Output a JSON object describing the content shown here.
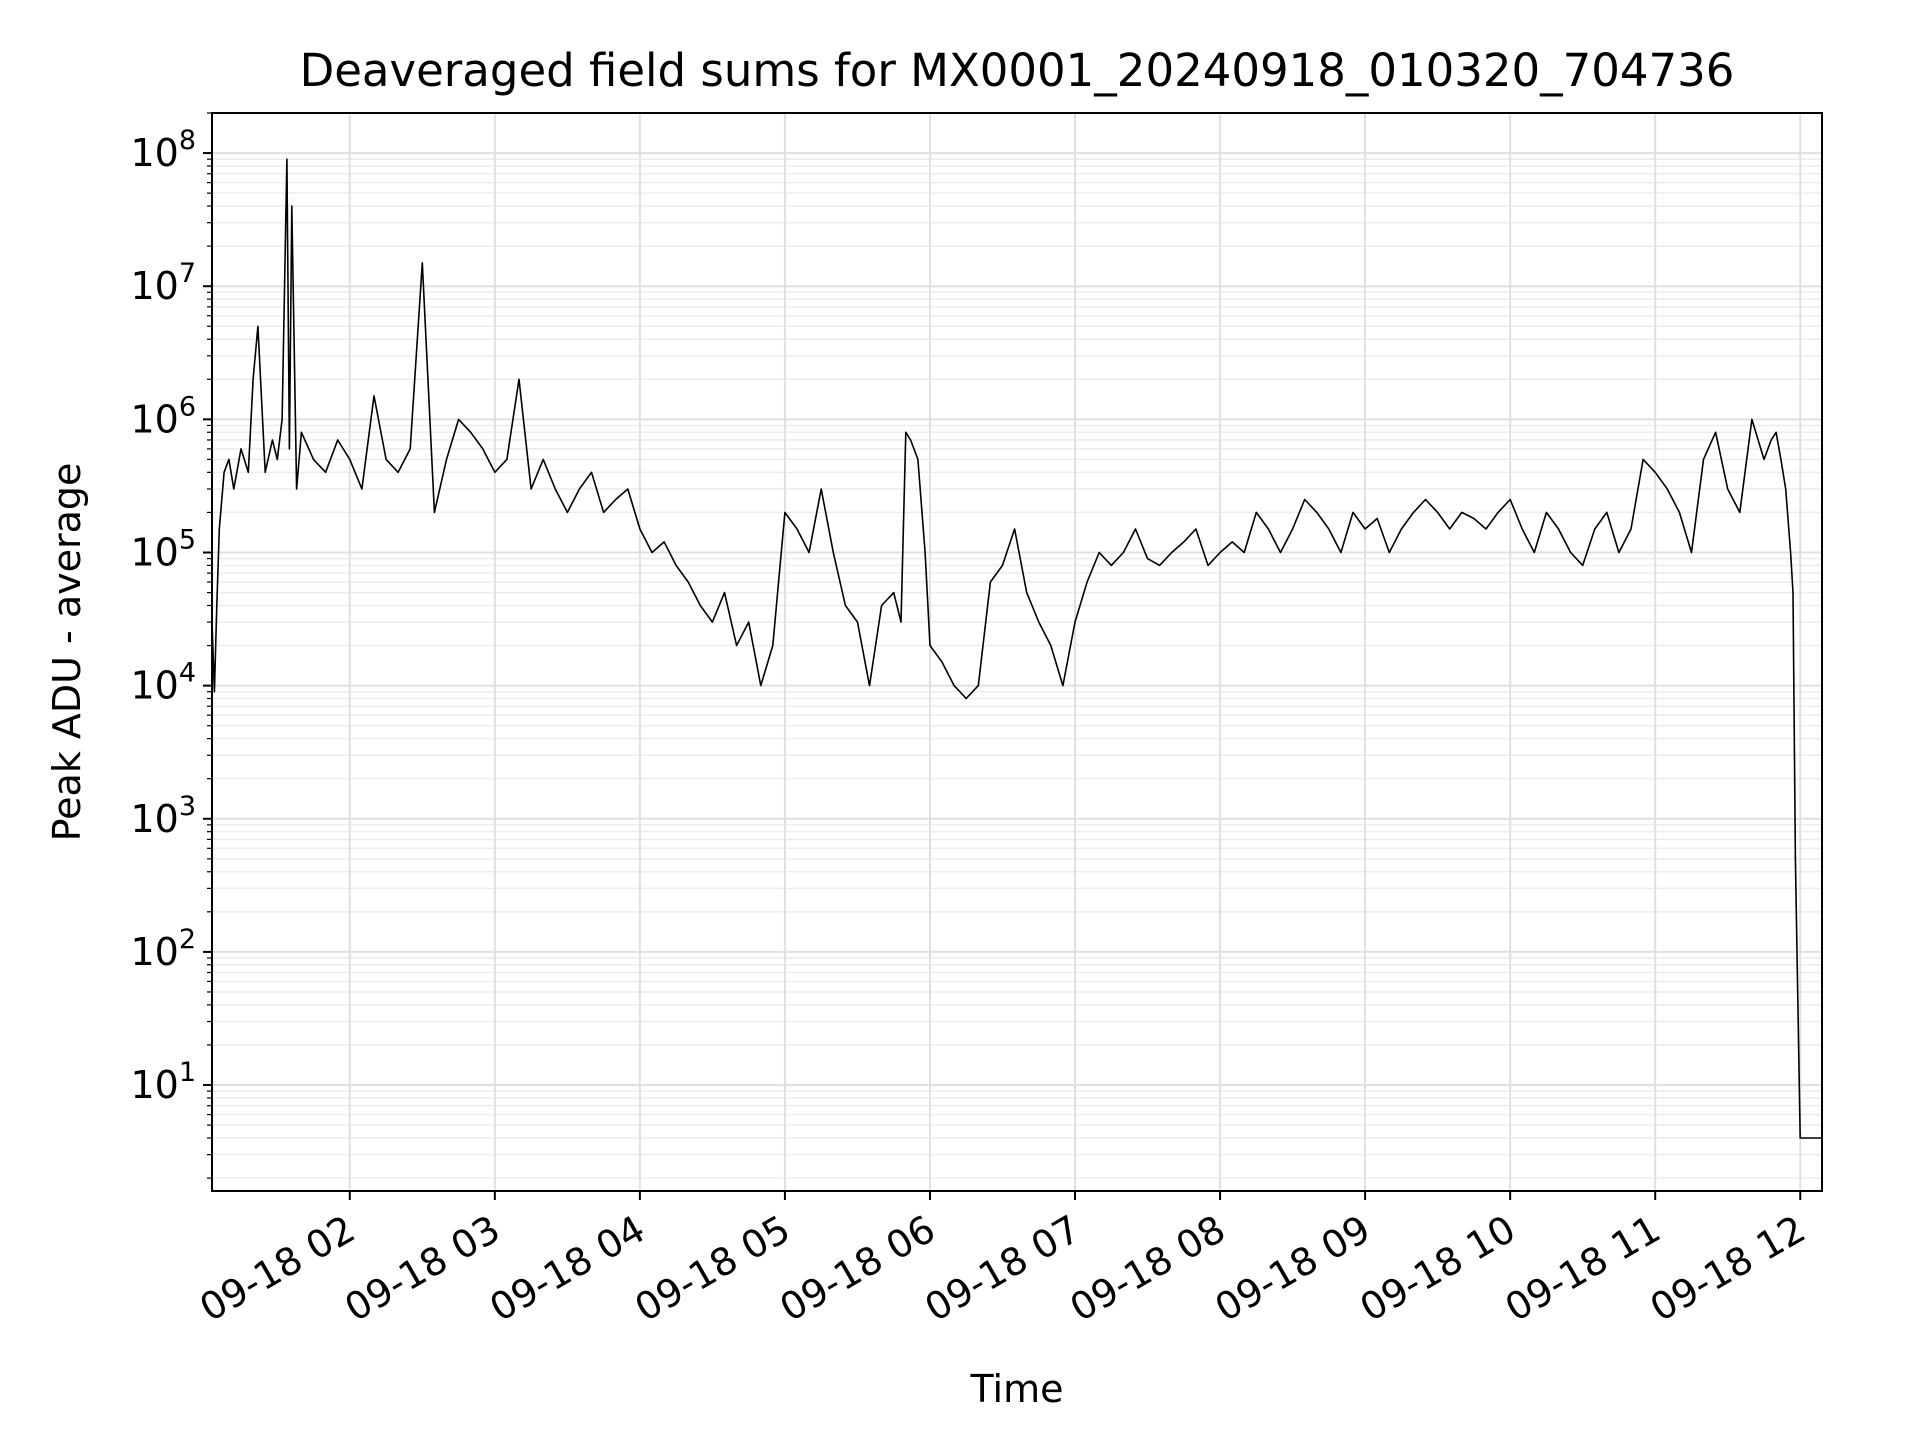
{
  "chart_data": {
    "type": "line",
    "title": "Deaveraged field sums for MX0001_20240918_010320_704736",
    "xlabel": "Time",
    "ylabel": "Peak ADU - average",
    "yscale": "log",
    "xlim": [
      "09-18 01:03",
      "09-18 12:09"
    ],
    "ylim": [
      1.6,
      200000000
    ],
    "grid": true,
    "x_ticks": [
      "09-18 02",
      "09-18 03",
      "09-18 04",
      "09-18 05",
      "09-18 06",
      "09-18 07",
      "09-18 08",
      "09-18 09",
      "09-18 10",
      "09-18 11",
      "09-18 12"
    ],
    "y_ticks": [
      {
        "base": "10",
        "exp": "1",
        "value": 10
      },
      {
        "base": "10",
        "exp": "2",
        "value": 100
      },
      {
        "base": "10",
        "exp": "3",
        "value": 1000
      },
      {
        "base": "10",
        "exp": "4",
        "value": 10000
      },
      {
        "base": "10",
        "exp": "5",
        "value": 100000
      },
      {
        "base": "10",
        "exp": "6",
        "value": 1000000
      },
      {
        "base": "10",
        "exp": "7",
        "value": 10000000
      },
      {
        "base": "10",
        "exp": "8",
        "value": 100000000
      }
    ],
    "series": [
      {
        "color": "#000000",
        "x": [
          "09-18 01:03",
          "09-18 01:04",
          "09-18 01:05",
          "09-18 01:06",
          "09-18 01:08",
          "09-18 01:10",
          "09-18 01:12",
          "09-18 01:15",
          "09-18 01:18",
          "09-18 01:20",
          "09-18 01:22",
          "09-18 01:25",
          "09-18 01:28",
          "09-18 01:30",
          "09-18 01:32",
          "09-18 01:34",
          "09-18 01:35",
          "09-18 01:36",
          "09-18 01:38",
          "09-18 01:40",
          "09-18 01:45",
          "09-18 01:50",
          "09-18 01:55",
          "09-18 02:00",
          "09-18 02:05",
          "09-18 02:10",
          "09-18 02:15",
          "09-18 02:20",
          "09-18 02:25",
          "09-18 02:30",
          "09-18 02:35",
          "09-18 02:40",
          "09-18 02:45",
          "09-18 02:50",
          "09-18 02:55",
          "09-18 03:00",
          "09-18 03:05",
          "09-18 03:10",
          "09-18 03:15",
          "09-18 03:20",
          "09-18 03:25",
          "09-18 03:30",
          "09-18 03:35",
          "09-18 03:40",
          "09-18 03:45",
          "09-18 03:50",
          "09-18 03:55",
          "09-18 04:00",
          "09-18 04:05",
          "09-18 04:10",
          "09-18 04:15",
          "09-18 04:20",
          "09-18 04:25",
          "09-18 04:30",
          "09-18 04:35",
          "09-18 04:40",
          "09-18 04:45",
          "09-18 04:50",
          "09-18 04:55",
          "09-18 05:00",
          "09-18 05:05",
          "09-18 05:10",
          "09-18 05:15",
          "09-18 05:20",
          "09-18 05:25",
          "09-18 05:30",
          "09-18 05:35",
          "09-18 05:40",
          "09-18 05:45",
          "09-18 05:48",
          "09-18 05:50",
          "09-18 05:52",
          "09-18 05:55",
          "09-18 05:58",
          "09-18 06:00",
          "09-18 06:05",
          "09-18 06:10",
          "09-18 06:15",
          "09-18 06:20",
          "09-18 06:25",
          "09-18 06:30",
          "09-18 06:35",
          "09-18 06:40",
          "09-18 06:45",
          "09-18 06:50",
          "09-18 06:55",
          "09-18 07:00",
          "09-18 07:05",
          "09-18 07:10",
          "09-18 07:15",
          "09-18 07:20",
          "09-18 07:25",
          "09-18 07:30",
          "09-18 07:35",
          "09-18 07:40",
          "09-18 07:45",
          "09-18 07:50",
          "09-18 07:55",
          "09-18 08:00",
          "09-18 08:05",
          "09-18 08:10",
          "09-18 08:15",
          "09-18 08:20",
          "09-18 08:25",
          "09-18 08:30",
          "09-18 08:35",
          "09-18 08:40",
          "09-18 08:45",
          "09-18 08:50",
          "09-18 08:55",
          "09-18 09:00",
          "09-18 09:05",
          "09-18 09:10",
          "09-18 09:15",
          "09-18 09:20",
          "09-18 09:25",
          "09-18 09:30",
          "09-18 09:35",
          "09-18 09:40",
          "09-18 09:45",
          "09-18 09:50",
          "09-18 09:55",
          "09-18 10:00",
          "09-18 10:05",
          "09-18 10:10",
          "09-18 10:15",
          "09-18 10:20",
          "09-18 10:25",
          "09-18 10:30",
          "09-18 10:35",
          "09-18 10:40",
          "09-18 10:45",
          "09-18 10:50",
          "09-18 10:55",
          "09-18 11:00",
          "09-18 11:05",
          "09-18 11:10",
          "09-18 11:15",
          "09-18 11:20",
          "09-18 11:25",
          "09-18 11:30",
          "09-18 11:35",
          "09-18 11:40",
          "09-18 11:45",
          "09-18 11:48",
          "09-18 11:50",
          "09-18 11:52",
          "09-18 11:54",
          "09-18 11:56",
          "09-18 11:57",
          "09-18 11:58",
          "09-18 12:00",
          "09-18 12:02",
          "09-18 12:05",
          "09-18 12:09"
        ],
        "y": [
          30000,
          9000,
          40000,
          150000,
          400000,
          500000,
          300000,
          600000,
          400000,
          2000000,
          5000000,
          400000,
          700000,
          500000,
          1000000,
          90000000,
          600000,
          40000000,
          300000,
          800000,
          500000,
          400000,
          700000,
          500000,
          300000,
          1500000,
          500000,
          400000,
          600000,
          15000000,
          200000,
          500000,
          1000000,
          800000,
          600000,
          400000,
          500000,
          2000000,
          300000,
          500000,
          300000,
          200000,
          300000,
          400000,
          200000,
          250000,
          300000,
          150000,
          100000,
          120000,
          80000,
          60000,
          40000,
          30000,
          50000,
          20000,
          30000,
          10000,
          20000,
          200000,
          150000,
          100000,
          300000,
          100000,
          40000,
          30000,
          10000,
          40000,
          50000,
          30000,
          800000,
          700000,
          500000,
          100000,
          20000,
          15000,
          10000,
          8000,
          10000,
          60000,
          80000,
          150000,
          50000,
          30000,
          20000,
          10000,
          30000,
          60000,
          100000,
          80000,
          100000,
          150000,
          90000,
          80000,
          100000,
          120000,
          150000,
          80000,
          100000,
          120000,
          100000,
          200000,
          150000,
          100000,
          150000,
          250000,
          200000,
          150000,
          100000,
          200000,
          150000,
          180000,
          100000,
          150000,
          200000,
          250000,
          200000,
          150000,
          200000,
          180000,
          150000,
          200000,
          250000,
          150000,
          100000,
          200000,
          150000,
          100000,
          80000,
          150000,
          200000,
          100000,
          150000,
          500000,
          400000,
          300000,
          200000,
          100000,
          500000,
          800000,
          300000,
          200000,
          1000000,
          500000,
          700000,
          800000,
          500000,
          300000,
          100000,
          50000,
          500,
          4,
          4,
          4,
          4
        ]
      }
    ]
  }
}
